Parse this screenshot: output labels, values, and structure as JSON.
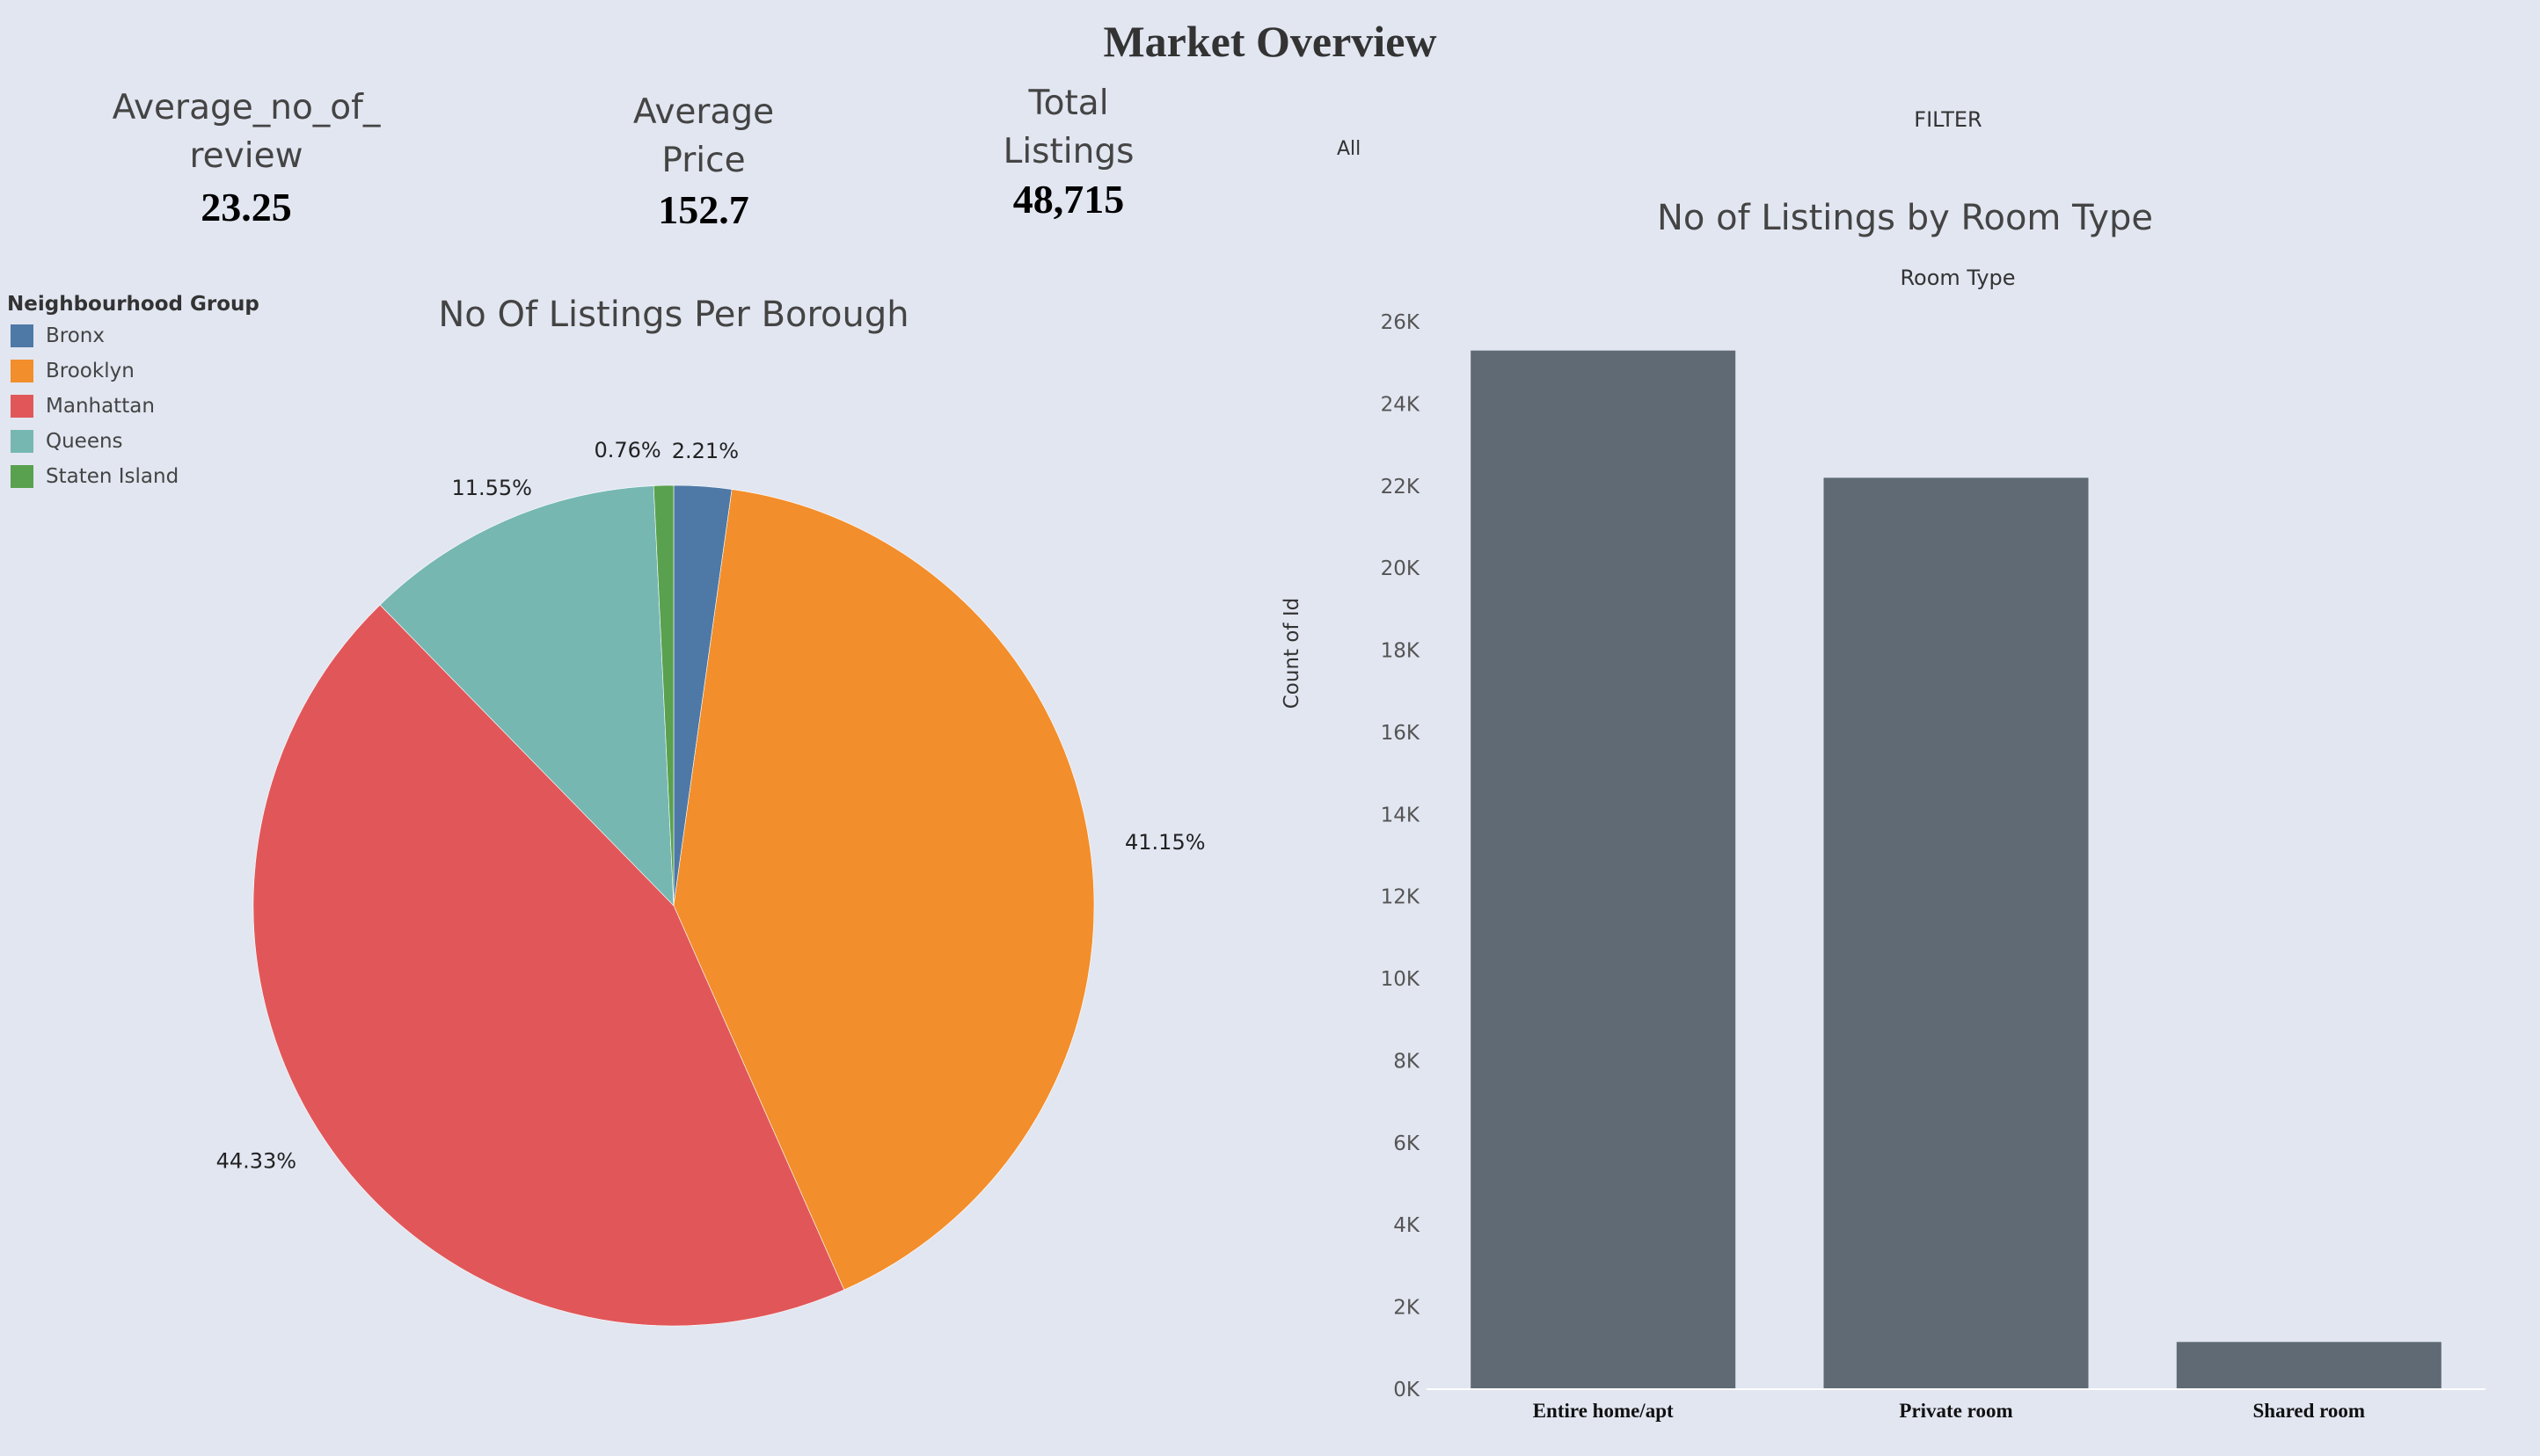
{
  "dashboard": {
    "title": "Market Overview",
    "filter_label": "FILTER",
    "filter_value": "All"
  },
  "kpis": {
    "reviews": {
      "label_line1": "Average_no_of_",
      "label_line2": "review",
      "value": "23.25"
    },
    "price": {
      "label_line1": "Average",
      "label_line2": "Price",
      "value": "152.7"
    },
    "listings": {
      "label_line1": "Total",
      "label_line2": "Listings",
      "value": "48,715"
    }
  },
  "pie": {
    "title": "No Of Listings Per Borough",
    "legend_title": "Neighbourhood Group",
    "legend": [
      {
        "name": "Bronx",
        "color": "#4e79a7"
      },
      {
        "name": "Brooklyn",
        "color": "#f28e2b"
      },
      {
        "name": "Manhattan",
        "color": "#e15759"
      },
      {
        "name": "Queens",
        "color": "#76b7b2"
      },
      {
        "name": "Staten Island",
        "color": "#59a14f"
      }
    ]
  },
  "bar": {
    "title": "No of Listings by Room Type",
    "header": "Room Type",
    "ylabel": "Count of Id"
  },
  "chart_data": [
    {
      "type": "pie",
      "title": "No Of Listings Per Borough",
      "legend_title": "Neighbourhood Group",
      "categories": [
        "Bronx",
        "Brooklyn",
        "Manhattan",
        "Queens",
        "Staten Island"
      ],
      "values": [
        2.21,
        41.15,
        44.33,
        11.55,
        0.76
      ],
      "labels": [
        "2.21%",
        "41.15%",
        "44.33%",
        "11.55%",
        "0.76%"
      ],
      "colors": [
        "#4e79a7",
        "#f28e2b",
        "#e15759",
        "#76b7b2",
        "#59a14f"
      ]
    },
    {
      "type": "bar",
      "title": "No of Listings by Room Type",
      "xlabel": "Room Type",
      "ylabel": "Count of Id",
      "categories": [
        "Entire home/apt",
        "Private room",
        "Shared room"
      ],
      "values": [
        25300,
        22200,
        1150
      ],
      "ylim": [
        0,
        26000
      ],
      "yticks": [
        0,
        2000,
        4000,
        6000,
        8000,
        10000,
        12000,
        14000,
        16000,
        18000,
        20000,
        22000,
        24000,
        26000
      ],
      "yticklabels": [
        "0K",
        "2K",
        "4K",
        "6K",
        "8K",
        "10K",
        "12K",
        "14K",
        "16K",
        "18K",
        "20K",
        "22K",
        "24K",
        "26K"
      ],
      "color": "#606a74",
      "grid": false
    }
  ]
}
